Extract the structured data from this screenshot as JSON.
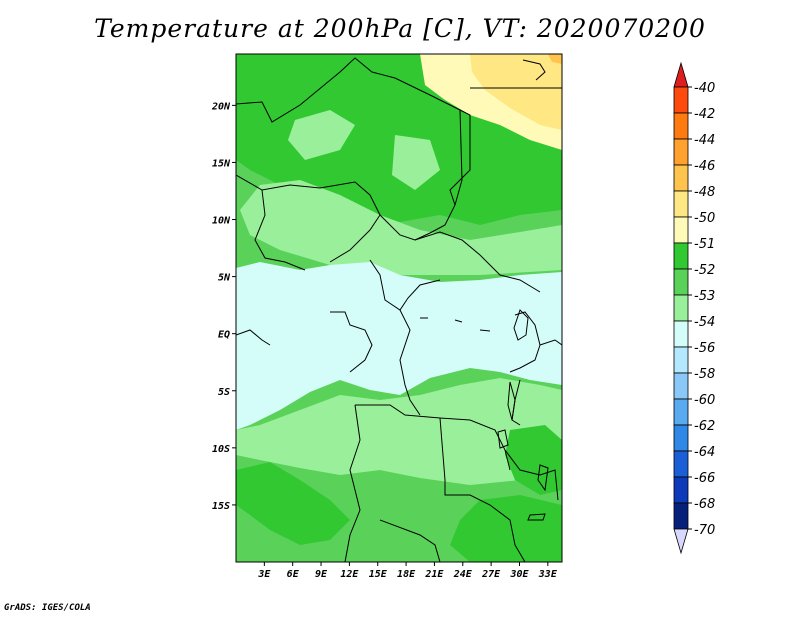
{
  "title": "Temperature at 200hPa [C], VT: 2020070200",
  "credit": "GrADS: IGES/COLA",
  "chart_data": {
    "type": "heatmap",
    "title": "Temperature at 200hPa [C], VT: 2020070200",
    "units": "C",
    "x_ticks": [
      "3E",
      "6E",
      "9E",
      "12E",
      "15E",
      "18E",
      "21E",
      "24E",
      "27E",
      "30E",
      "33E"
    ],
    "y_ticks": [
      "20N",
      "15N",
      "10N",
      "5N",
      "EQ",
      "5S",
      "10S",
      "15S"
    ],
    "xlim": [
      0,
      34.5
    ],
    "ylim": [
      -20,
      24.5
    ],
    "colorbar": {
      "levels": [
        "-40",
        "-42",
        "-44",
        "-46",
        "-48",
        "-50",
        "-51",
        "-52",
        "-53",
        "-54",
        "-56",
        "-58",
        "-60",
        "-62",
        "-64",
        "-66",
        "-68",
        "-70"
      ],
      "colors": [
        "#dd1e1e",
        "#ff4a0e",
        "#ff7a10",
        "#ffa12e",
        "#ffc44e",
        "#ffe784",
        "#fffab8",
        "#32c832",
        "#5ad25a",
        "#9af09a",
        "#d4fcf8",
        "#b4e8ff",
        "#8ac8f8",
        "#5aaaf0",
        "#2f88e6",
        "#1a5fd6",
        "#0c3ab8",
        "#07207a",
        "#d8d8ff"
      ],
      "triangle_top_color": "#dd1e1e",
      "triangle_bottom_color": "#d8d8ff"
    },
    "field_regions": [
      {
        "value": "-50..-48",
        "area": "northeast corner (Libya / Egypt border, above ~19N east of 21E)"
      },
      {
        "value": "-51..-50",
        "area": "band south of the northeast corner near 20-23N"
      },
      {
        "value": "-52..-51",
        "area": "northern Sahel and Sahara, 12-22N, and southern Africa near 14-19S"
      },
      {
        "value": "-53..-52",
        "area": "broad belts 5-12N and 8-19S"
      },
      {
        "value": "-54..-53",
        "area": "transitional belts near 5N and 6S"
      },
      {
        "value": "-56..-54",
        "area": "equatorial zone, roughly 5S to 5N"
      }
    ]
  }
}
